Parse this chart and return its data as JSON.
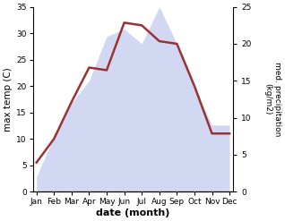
{
  "months": [
    "Jan",
    "Feb",
    "Mar",
    "Apr",
    "May",
    "Jun",
    "Jul",
    "Aug",
    "Sep",
    "Oct",
    "Nov",
    "Dec"
  ],
  "temperature": [
    5.5,
    10.0,
    17.0,
    23.5,
    23.0,
    32.0,
    31.5,
    28.5,
    28.0,
    20.0,
    11.0,
    11.0
  ],
  "precipitation": [
    2.0,
    7.5,
    12.0,
    15.0,
    21.0,
    22.0,
    20.0,
    25.0,
    20.0,
    14.0,
    9.0,
    9.0
  ],
  "temp_color": "#993333",
  "precip_color": "#b0b8e8",
  "ylabel_left": "max temp (C)",
  "ylabel_right": "med. precipitation\n(kg/m2)",
  "xlabel": "date (month)",
  "ylim_left": [
    0,
    35
  ],
  "ylim_right": [
    0,
    25
  ],
  "yticks_left": [
    0,
    5,
    10,
    15,
    20,
    25,
    30,
    35
  ],
  "yticks_right": [
    0,
    5,
    10,
    15,
    20,
    25
  ],
  "bg_color": "#ffffff",
  "line_width": 1.8,
  "figsize": [
    3.18,
    2.47
  ],
  "dpi": 100
}
